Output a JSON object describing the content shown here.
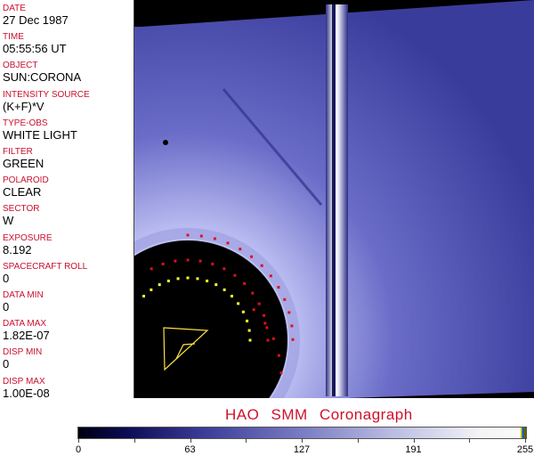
{
  "fields": [
    {
      "label": "DATE",
      "value": "27 Dec 1987"
    },
    {
      "label": "TIME",
      "value": "05:55:56 UT"
    },
    {
      "label": "OBJECT",
      "value": "SUN:CORONA"
    },
    {
      "label": "INTENSITY SOURCE",
      "value": "(K+F)*V"
    },
    {
      "label": "TYPE-OBS",
      "value": "WHITE LIGHT"
    },
    {
      "label": "FILTER",
      "value": "GREEN"
    },
    {
      "label": "POLAROID",
      "value": "CLEAR"
    },
    {
      "label": "SECTOR",
      "value": "W"
    },
    {
      "label": "EXPOSURE",
      "value": "8.192"
    },
    {
      "label": "SPACECRAFT ROLL",
      "value": "0"
    },
    {
      "label": "DATA MIN",
      "value": "0"
    },
    {
      "label": "DATA MAX",
      "value": "1.82E-07"
    },
    {
      "label": "DISP MIN",
      "value": "0"
    },
    {
      "label": "DISP MAX",
      "value": "1.00E-08"
    }
  ],
  "title": "HAO  SMM Coronagraph",
  "colorbar": {
    "ticks": [
      "0",
      "63",
      "127",
      "191",
      "255"
    ],
    "colors": [
      "#000010",
      "#3a3c98",
      "#c0c2e4",
      "#fafafa"
    ]
  },
  "image_colors": {
    "background": "#000000",
    "corona": "#4a4cb0",
    "occulter": "#000000",
    "markers_red": "#e01020",
    "markers_yellow": "#ffff30"
  }
}
